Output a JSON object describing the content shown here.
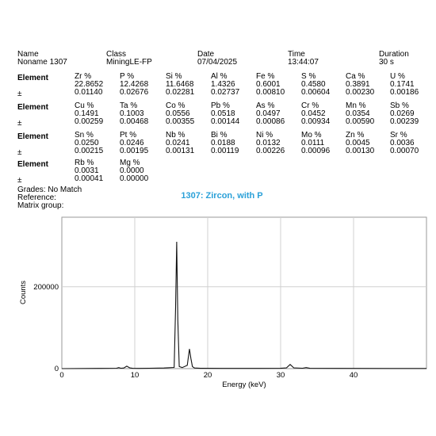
{
  "header": {
    "labels": [
      "Name",
      "Class",
      "Date",
      "Time",
      "Duration"
    ],
    "values": [
      "Noname 1307",
      "MiningLE-FP",
      "07/04/2025",
      "13:44:07",
      "30 s"
    ]
  },
  "element_label": "Element",
  "error_symbol": "±",
  "element_rows": [
    {
      "headers": [
        "Zr %",
        "P %",
        "Si %",
        "Al %",
        "Fe %",
        "S %",
        "Ca %",
        "U %"
      ],
      "values": [
        "22.8652",
        "12.4268",
        "11.6468",
        "1.4326",
        "0.6001",
        "0.4580",
        "0.3891",
        "0.1741"
      ],
      "errors": [
        "0.01140",
        "0.02676",
        "0.02281",
        "0.02737",
        "0.00810",
        "0.00604",
        "0.00230",
        "0.00186"
      ]
    },
    {
      "headers": [
        "Cu %",
        "Ta %",
        "Co %",
        "Pb %",
        "As %",
        "Cr %",
        "Mn %",
        "Sb %"
      ],
      "values": [
        "0.1491",
        "0.1003",
        "0.0556",
        "0.0518",
        "0.0497",
        "0.0452",
        "0.0354",
        "0.0269"
      ],
      "errors": [
        "0.00259",
        "0.00468",
        "0.00355",
        "0.00144",
        "0.00086",
        "0.00934",
        "0.00590",
        "0.00239"
      ]
    },
    {
      "headers": [
        "Sn %",
        "Pt %",
        "Nb %",
        "Bi %",
        "Ni %",
        "Mo %",
        "Zn %",
        "Sr %"
      ],
      "values": [
        "0.0250",
        "0.0246",
        "0.0241",
        "0.0188",
        "0.0132",
        "0.0111",
        "0.0045",
        "0.0036"
      ],
      "errors": [
        "0.00215",
        "0.00195",
        "0.00131",
        "0.00119",
        "0.00226",
        "0.00096",
        "0.00130",
        "0.00070"
      ]
    },
    {
      "headers": [
        "Rb %",
        "Mg %"
      ],
      "values": [
        "0.0031",
        "0.0000"
      ],
      "errors": [
        "0.00041",
        "0.00000"
      ]
    }
  ],
  "footer": {
    "grades": "Grades: No Match",
    "reference": "Reference:",
    "matrix_group": "Matrix group:"
  },
  "spectrum_title": "1307: Zircon, with P",
  "chart_data": {
    "type": "line",
    "title": "1307: Zircon, with P",
    "xlabel": "Energy (keV)",
    "ylabel": "Counts",
    "xlim": [
      0,
      50
    ],
    "ylim": [
      0,
      370000
    ],
    "x_ticks": [
      0,
      10,
      20,
      30,
      40
    ],
    "y_ticks": [
      0,
      200000
    ],
    "grid": true,
    "series": [
      {
        "x": [
          0,
          5,
          7.5,
          7.8,
          8.1,
          8.5,
          8.9,
          9.3,
          9.7,
          10.5,
          12,
          14,
          15.4,
          15.6,
          15.75,
          15.9,
          16.1,
          16.5,
          17.2,
          17.5,
          17.7,
          17.9,
          18.2,
          19,
          22,
          27,
          30,
          30.8,
          31.3,
          31.8,
          33,
          33.5,
          34,
          38,
          45,
          50
        ],
        "values": [
          0,
          500,
          1000,
          2500,
          1000,
          1500,
          6000,
          2000,
          800,
          600,
          900,
          1500,
          3000,
          150000,
          310000,
          120000,
          5000,
          2500,
          8000,
          48000,
          25000,
          5000,
          1500,
          800,
          600,
          500,
          800,
          2000,
          10000,
          2000,
          1000,
          2500,
          800,
          500,
          400,
          300
        ]
      }
    ]
  }
}
